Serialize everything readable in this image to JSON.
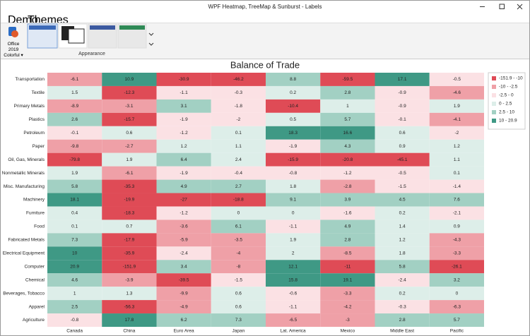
{
  "window": {
    "title": "WPF Heatmap, TreeMap & Sunburst - Labels"
  },
  "ribbon": {
    "tabs": [
      "Demo",
      "Themes"
    ],
    "theme_button": "Office 2019 Colorful",
    "group_label": "Appearance"
  },
  "chart_data": {
    "type": "heatmap",
    "title": "Balance of Trade",
    "x_categories": [
      "Canada",
      "China",
      "Euro Area",
      "Japan",
      "Lat. America",
      "Mexico",
      "Middle East",
      "Pacific"
    ],
    "y_categories": [
      "Transportation",
      "Textile",
      "Primary Metals",
      "Plastics",
      "Petroleum",
      "Paper",
      "Oil, Gas, Minerals",
      "Nonmetallic Minerals",
      "Misc. Manufacturing",
      "Machinery",
      "Furniture",
      "Food",
      "Fabricated Metals",
      "Electrical Equipment",
      "Computer",
      "Chemical",
      "Beverages, Tobacco",
      "Apparel",
      "Agriculture"
    ],
    "values": [
      [
        -6.1,
        10.9,
        -30.9,
        -46.2,
        8.8,
        -59.5,
        17.1,
        -0.5
      ],
      [
        1.5,
        -12.3,
        -1.1,
        -0.3,
        0.2,
        2.8,
        -0.9,
        -4.6
      ],
      [
        -8.9,
        -3.1,
        3.1,
        -1.8,
        -10.4,
        1,
        -0.9,
        1.9
      ],
      [
        2.6,
        -15.7,
        -1.9,
        -2,
        0.5,
        5.7,
        -0.1,
        -4.1
      ],
      [
        -0.1,
        0.6,
        -1.2,
        0.1,
        18.3,
        16.6,
        0.6,
        -2
      ],
      [
        -9.8,
        -2.7,
        1.2,
        1.1,
        -1.9,
        4.3,
        0.9,
        1.2
      ],
      [
        -79.8,
        1.9,
        6.4,
        2.4,
        -15.9,
        -20.8,
        -45.1,
        1.1
      ],
      [
        1.9,
        -6.1,
        -1.9,
        -0.4,
        -0.8,
        -1.2,
        -0.5,
        0.1
      ],
      [
        5.8,
        -35.3,
        4.9,
        2.7,
        1.8,
        -2.8,
        -1.5,
        -1.4
      ],
      [
        18.1,
        -19.9,
        -27,
        -18.8,
        9.1,
        3.9,
        4.5,
        7.6
      ],
      [
        0.4,
        -18.3,
        -1.2,
        0,
        0,
        -1.6,
        0.2,
        -2.1
      ],
      [
        0.1,
        0.7,
        -3.6,
        6.1,
        -1.1,
        4.9,
        1.4,
        0.9
      ],
      [
        7.3,
        -17.9,
        -5.9,
        -3.5,
        1.9,
        2.8,
        1.2,
        -4.3
      ],
      [
        10,
        -35.9,
        -2.4,
        -4,
        2,
        -8.5,
        1.8,
        -3.3
      ],
      [
        20.9,
        -151.9,
        3.4,
        -8,
        12.1,
        -11,
        5.8,
        -26.1
      ],
      [
        4.6,
        -3.9,
        -39.5,
        -1.5,
        15.8,
        19.1,
        -2.4,
        3.2
      ],
      [
        1,
        1.3,
        -9.9,
        0.6,
        -0.6,
        -3.3,
        0.2,
        0
      ],
      [
        2.5,
        -56.3,
        -4.9,
        0.6,
        -1.1,
        -4.2,
        -0.3,
        -6.3
      ],
      [
        -0.8,
        17.8,
        6.2,
        7.3,
        -6.5,
        -3,
        2.8,
        5.7
      ]
    ],
    "color_ranges": [
      {
        "min": -151.9,
        "max": -10,
        "label": "-151.9 - -10",
        "color": "#df4b56"
      },
      {
        "min": -10,
        "max": -2.5,
        "label": "-10 - -2.5",
        "color": "#efa0a7"
      },
      {
        "min": -2.5,
        "max": 0,
        "label": "-2.5 - 0",
        "color": "#fbe1e4"
      },
      {
        "min": 0,
        "max": 2.5,
        "label": "0 - 2.5",
        "color": "#ddeee9"
      },
      {
        "min": 2.5,
        "max": 10,
        "label": "2.5 - 10",
        "color": "#a2d0c3"
      },
      {
        "min": 10,
        "max": 20.9,
        "label": "10 - 20.9",
        "color": "#3f9985"
      }
    ]
  }
}
